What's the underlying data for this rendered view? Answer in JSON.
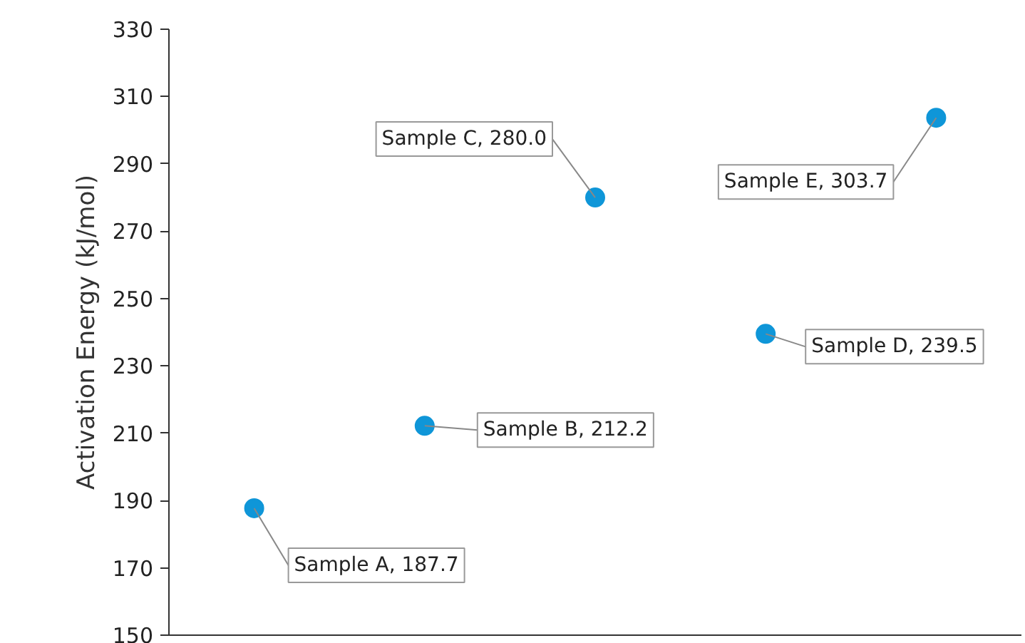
{
  "chart_data": {
    "type": "scatter",
    "ylabel": "Activation Energy (kJ/mol)",
    "categories": [
      null,
      null,
      null,
      null,
      null
    ],
    "series": [
      {
        "color": "#0f96d8",
        "values": [
          187.7,
          212.2,
          280.0,
          239.5,
          303.7
        ],
        "value_labels": [
          "Sample A, 187.7",
          "Sample B, 212.2",
          "Sample C, 280.0",
          "Sample D, 239.5",
          "Sample E, 303.7"
        ]
      }
    ],
    "ylim": [
      150,
      330
    ],
    "yticks": [
      150,
      170,
      190,
      210,
      230,
      250,
      270,
      290,
      310,
      330
    ],
    "grid": false,
    "marker": "circle"
  }
}
